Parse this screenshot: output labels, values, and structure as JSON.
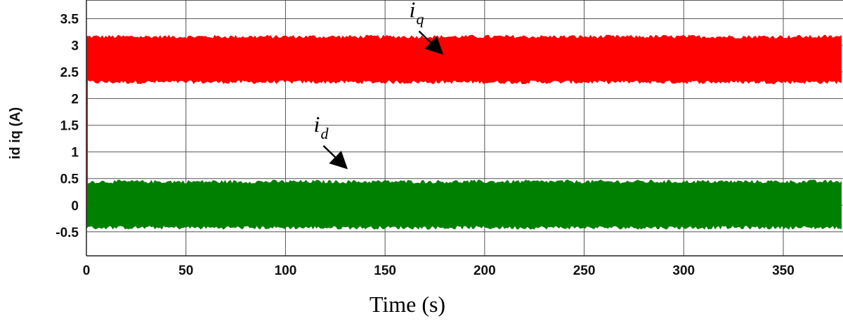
{
  "chart_data": {
    "type": "line",
    "xlabel": "Time (s)",
    "ylabel": "id iq (A)",
    "xlim": [
      0,
      380
    ],
    "ylim": [
      -0.95,
      3.85
    ],
    "x_ticks": [
      "0",
      "50",
      "100",
      "150",
      "200",
      "250",
      "300",
      "350"
    ],
    "x_tick_values": [
      0,
      50,
      100,
      150,
      200,
      250,
      300,
      350
    ],
    "y_ticks": [
      "-0.5",
      "0",
      "0.5",
      "1",
      "1.5",
      "2",
      "2.5",
      "3",
      "3.5"
    ],
    "y_tick_values": [
      -0.5,
      0,
      0.5,
      1,
      1.5,
      2,
      2.5,
      3,
      3.5
    ],
    "grid": true,
    "series": [
      {
        "name": "iq",
        "color": "#ff0000",
        "mean": 2.73,
        "upper_envelope": 3.17,
        "lower_envelope": 2.3,
        "x_range": [
          0,
          380
        ]
      },
      {
        "name": "id",
        "color": "#008000",
        "mean": 0.02,
        "upper_envelope": 0.45,
        "lower_envelope": -0.43,
        "x_range": [
          0,
          380
        ]
      }
    ],
    "annotations": [
      {
        "text": "i",
        "subscript": "q",
        "arrow_to": {
          "x": 178,
          "y": 2.87
        }
      },
      {
        "text": "i",
        "subscript": "d",
        "arrow_to": {
          "x": 130,
          "y": 0.72
        }
      }
    ]
  }
}
